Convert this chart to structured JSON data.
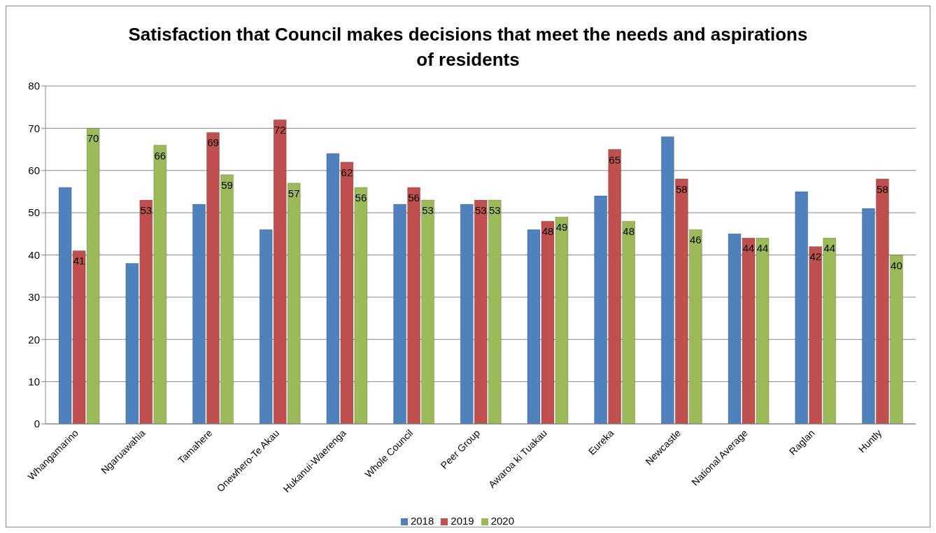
{
  "chart_data": {
    "type": "bar",
    "title": "Satisfaction that Council makes decisions that meet the needs and aspirations of residents",
    "categories": [
      "Whangamarino",
      "Ngaruawahia",
      "Tamahere",
      "Onewhero-Te Akau",
      "Hukanui-Waerenga",
      "Whole Council",
      "Peer Group",
      "Awaroa ki Tuakau",
      "Eureka",
      "Newcastle",
      "National Average",
      "Raglan",
      "Huntly"
    ],
    "series": [
      {
        "name": "2018",
        "color": "#4f81bd",
        "values": [
          56,
          38,
          52,
          46,
          64,
          52,
          52,
          46,
          54,
          68,
          45,
          55,
          51
        ]
      },
      {
        "name": "2019",
        "color": "#c0504d",
        "values": [
          41,
          53,
          69,
          72,
          62,
          56,
          53,
          48,
          65,
          58,
          44,
          42,
          58
        ],
        "value_labels": [
          "41",
          "53",
          "69",
          "72",
          "62",
          "56",
          "53",
          "48",
          "65",
          "58",
          "44",
          "42",
          "58"
        ]
      },
      {
        "name": "2020",
        "color": "#9bbb59",
        "values": [
          70,
          66,
          59,
          57,
          56,
          53,
          53,
          49,
          48,
          46,
          44,
          44,
          40
        ],
        "value_labels": [
          "70",
          "66",
          "59",
          "57",
          "56",
          "53",
          "53",
          "49",
          "48",
          "46",
          "44",
          "44",
          "40"
        ]
      }
    ],
    "ylim": [
      0,
      80
    ],
    "yticks": [
      0,
      10,
      20,
      30,
      40,
      50,
      60,
      70,
      80
    ],
    "grid": "y",
    "legend": "bottom"
  }
}
